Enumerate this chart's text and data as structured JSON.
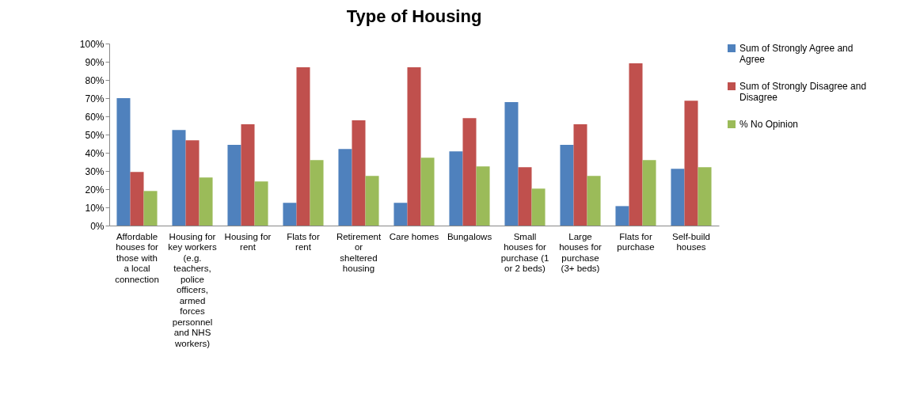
{
  "chart_data": {
    "type": "bar",
    "title": "Type of Housing",
    "categories": [
      "Affordable houses for those with a local connection",
      "Housing for key workers (e.g. teachers, police officers, armed forces personnel and NHS workers)",
      "Housing for rent",
      "Flats for rent",
      "Retirement or sheltered housing",
      "Care homes",
      "Bungalows",
      "Small houses for purchase (1 or 2 beds)",
      "Large houses for purchase (3+ beds)",
      "Flats for purchase",
      "Self-build houses"
    ],
    "series": [
      {
        "name": "Sum of Strongly Agree and Agree",
        "color": "#4f81bd",
        "values": [
          70,
          52.5,
          44.3,
          12.5,
          42.1,
          12.5,
          40.8,
          67.8,
          44.3,
          10.7,
          31.2
        ]
      },
      {
        "name": "Sum of Strongly Disagree and Disagree",
        "color": "#c0504d",
        "values": [
          29.5,
          46.9,
          55.6,
          87,
          57.8,
          87,
          59,
          32.1,
          55.6,
          89.1,
          68.6
        ]
      },
      {
        "name": "% No Opinion",
        "color": "#9bbb59",
        "values": [
          19,
          26.4,
          24.2,
          36,
          27.3,
          37.3,
          32.5,
          20.3,
          27.3,
          36,
          32.1
        ]
      }
    ],
    "ylim": [
      0,
      100
    ],
    "yticks": [
      {
        "value": 0,
        "label": "0%"
      },
      {
        "value": 10,
        "label": "10%"
      },
      {
        "value": 20,
        "label": "20%"
      },
      {
        "value": 30,
        "label": "30%"
      },
      {
        "value": 40,
        "label": "40%"
      },
      {
        "value": 50,
        "label": "50%"
      },
      {
        "value": 60,
        "label": "60%"
      },
      {
        "value": 70,
        "label": "70%"
      },
      {
        "value": 80,
        "label": "80%"
      },
      {
        "value": 90,
        "label": "90%"
      },
      {
        "value": 100,
        "label": "100%"
      }
    ],
    "grid": false,
    "legend": "right"
  }
}
